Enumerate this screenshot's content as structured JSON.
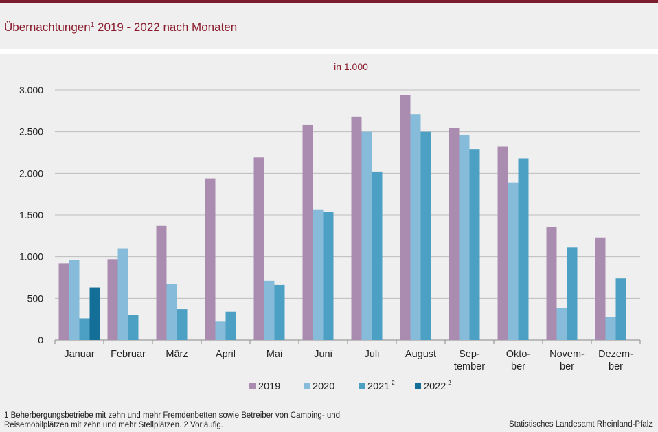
{
  "header": {
    "title_main": "Übernachtungen",
    "title_sup": "1",
    "title_rest": " 2019 - 2022 nach Monaten",
    "brand_color": "#7b1d2d"
  },
  "chart_data": {
    "type": "bar",
    "unit_label": "in 1.000",
    "categories": [
      "Januar",
      "Februar",
      "März",
      "April",
      "Mai",
      "Juni",
      "Juli",
      "August",
      "Sep-\ntember",
      "Okto-\nber",
      "Novem-\nber",
      "Dezem-\nber"
    ],
    "series": [
      {
        "name": "2019",
        "sup": "",
        "color": "#ab8cb1",
        "values": [
          920,
          970,
          1370,
          1940,
          2190,
          2580,
          2680,
          2940,
          2540,
          2320,
          1360,
          1230
        ]
      },
      {
        "name": "2020",
        "sup": "",
        "color": "#86bcd9",
        "values": [
          960,
          1100,
          670,
          220,
          710,
          1560,
          2500,
          2710,
          2460,
          1890,
          380,
          280
        ]
      },
      {
        "name": "2021",
        "sup": "2",
        "color": "#4ca0c3",
        "values": [
          260,
          300,
          370,
          340,
          660,
          1540,
          2020,
          2500,
          2290,
          2180,
          1110,
          740
        ]
      },
      {
        "name": "2022",
        "sup": "2",
        "color": "#136f97",
        "values": [
          630,
          null,
          null,
          null,
          null,
          null,
          null,
          null,
          null,
          null,
          null,
          null
        ]
      }
    ],
    "ylim": [
      0,
      3000
    ],
    "yticks": [
      0,
      500,
      1000,
      1500,
      2000,
      2500,
      3000
    ],
    "ytick_labels": [
      "0",
      "500",
      "1.000",
      "1.500",
      "2.000",
      "2.500",
      "3.000"
    ],
    "grid": true,
    "legend": "bottom"
  },
  "footer": {
    "footnote": "1 Beherbergungsbetriebe  mit zehn und mehr Fremdenbetten  sowie Betreiber von Camping-  und Reisemobilplätzen  mit zehn und mehr Stellplätzen. 2 Vorläufig.",
    "source": "Statistisches Landesamt Rheinland-Pfalz"
  }
}
